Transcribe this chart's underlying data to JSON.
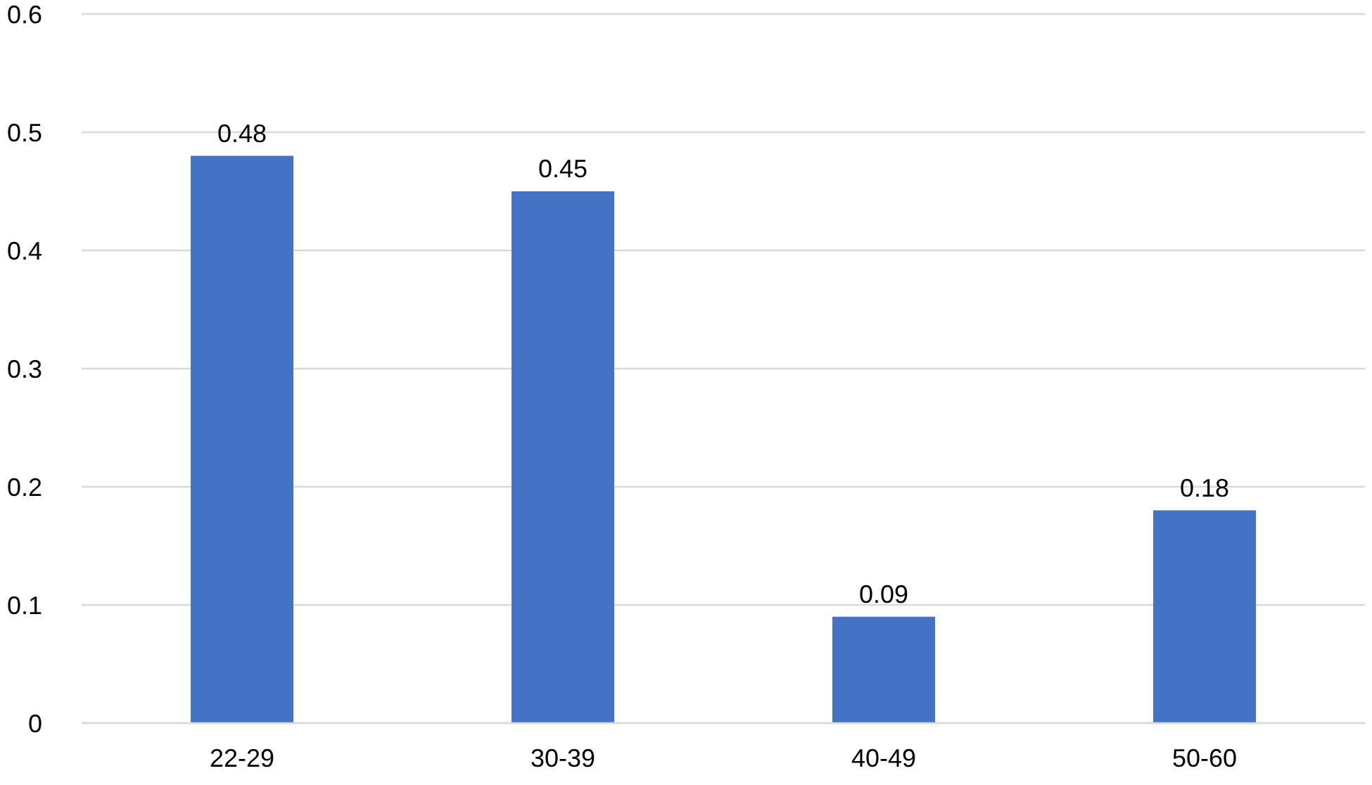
{
  "chart_data": {
    "type": "bar",
    "categories": [
      "22-29",
      "30-39",
      "40-49",
      "50-60"
    ],
    "values": [
      0.48,
      0.45,
      0.09,
      0.18
    ],
    "color": "#4472c4",
    "ylim": [
      0,
      0.6
    ],
    "yticks": [
      0,
      0.1,
      0.2,
      0.3,
      0.4,
      0.5,
      0.6
    ],
    "grid": "y",
    "data_labels": true
  }
}
